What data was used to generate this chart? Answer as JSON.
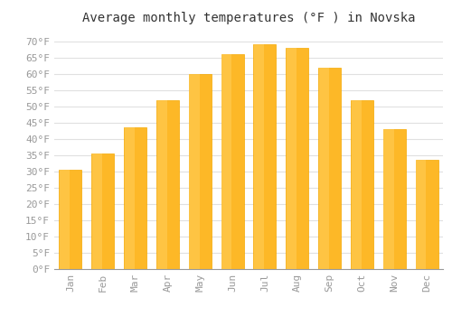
{
  "title": "Average monthly temperatures (°F ) in Novska",
  "months": [
    "Jan",
    "Feb",
    "Mar",
    "Apr",
    "May",
    "Jun",
    "Jul",
    "Aug",
    "Sep",
    "Oct",
    "Nov",
    "Dec"
  ],
  "values": [
    30.5,
    35.5,
    43.5,
    52.0,
    60.0,
    66.0,
    69.0,
    68.0,
    62.0,
    52.0,
    43.0,
    33.5
  ],
  "bar_color": "#FDB827",
  "bar_edge_color": "#F5A800",
  "background_color": "#FFFFFF",
  "grid_color": "#E0E0E0",
  "text_color": "#999999",
  "title_color": "#333333",
  "ylim": [
    0,
    73
  ],
  "yticks": [
    0,
    5,
    10,
    15,
    20,
    25,
    30,
    35,
    40,
    45,
    50,
    55,
    60,
    65,
    70
  ],
  "ytick_labels": [
    "0°F",
    "5°F",
    "10°F",
    "15°F",
    "20°F",
    "25°F",
    "30°F",
    "35°F",
    "40°F",
    "45°F",
    "50°F",
    "55°F",
    "60°F",
    "65°F",
    "70°F"
  ],
  "title_fontsize": 10,
  "tick_fontsize": 8,
  "font_family": "monospace",
  "bar_width": 0.7
}
